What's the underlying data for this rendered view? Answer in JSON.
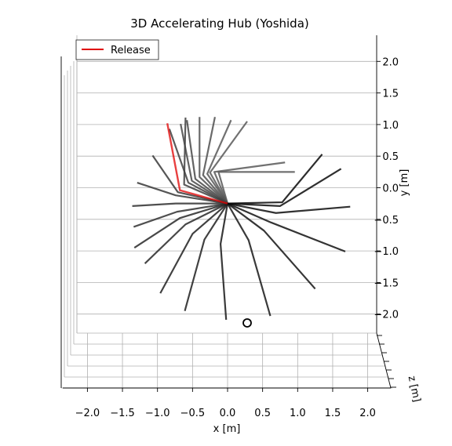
{
  "chart_data": {
    "type": "line",
    "title": "3D Accelerating Hub (Yoshida)",
    "xlabel": "x [m]",
    "ylabel": "y [m]",
    "zlabel": "z [m]",
    "xlim": [
      -2.3,
      2.3
    ],
    "ylim": [
      -2.3,
      2.3
    ],
    "x_ticks": [
      "−2.0",
      "−1.5",
      "−1.0",
      "−0.5",
      "0.0",
      "0.5",
      "1.0",
      "1.5",
      "2.0"
    ],
    "y_ticks": [
      "2.0",
      "1.5",
      "1.0",
      "0.5",
      "0.0",
      "−0.5",
      "−1.0",
      "−1.5",
      "−2.0"
    ],
    "grid": true,
    "legend": {
      "entries": [
        {
          "label": "Release",
          "color": "#e00000"
        }
      ],
      "position": "top-left"
    },
    "hub": {
      "x": 0.0,
      "y": -0.25
    },
    "release_frame": {
      "elbow": [
        -0.68,
        -0.04
      ],
      "tip": [
        -0.86,
        1.02
      ]
    },
    "end_marker": {
      "x": 0.28,
      "y": -2.14
    },
    "frames": [
      {
        "elbow": [
          -0.13,
          0.25
        ],
        "tip": [
          0.96,
          0.25
        ],
        "shade": 0.55
      },
      {
        "elbow": [
          -0.19,
          0.25
        ],
        "tip": [
          0.82,
          0.4
        ],
        "shade": 0.55
      },
      {
        "elbow": [
          -0.25,
          0.24
        ],
        "tip": [
          0.28,
          1.05
        ],
        "shade": 0.55
      },
      {
        "elbow": [
          -0.29,
          0.22
        ],
        "tip": [
          0.05,
          1.07
        ],
        "shade": 0.55
      },
      {
        "elbow": [
          -0.35,
          0.2
        ],
        "tip": [
          -0.18,
          1.12
        ],
        "shade": 0.5
      },
      {
        "elbow": [
          -0.4,
          0.17
        ],
        "tip": [
          -0.4,
          1.12
        ],
        "shade": 0.5
      },
      {
        "elbow": [
          -0.46,
          0.14
        ],
        "tip": [
          -0.58,
          1.07
        ],
        "shade": 0.45
      },
      {
        "elbow": [
          -0.51,
          0.11
        ],
        "tip": [
          -0.67,
          1.01
        ],
        "shade": 0.45
      },
      {
        "elbow": [
          -0.56,
          0.08
        ],
        "tip": [
          -0.83,
          0.93
        ],
        "shade": 0.4
      },
      {
        "elbow": [
          -0.62,
          0.05
        ],
        "tip": [
          -0.6,
          1.11
        ],
        "shade": 0.4
      },
      {
        "elbow": [
          -0.71,
          -0.07
        ],
        "tip": [
          -1.07,
          0.51
        ],
        "shade": 0.35
      },
      {
        "elbow": [
          -0.74,
          -0.12
        ],
        "tip": [
          -1.29,
          0.08
        ],
        "shade": 0.35
      },
      {
        "elbow": [
          -0.74,
          -0.25
        ],
        "tip": [
          -1.36,
          -0.29
        ],
        "shade": 0.3
      },
      {
        "elbow": [
          -0.72,
          -0.38
        ],
        "tip": [
          -1.34,
          -0.62
        ],
        "shade": 0.3
      },
      {
        "elbow": [
          -0.68,
          -0.48
        ],
        "tip": [
          -1.33,
          -0.95
        ],
        "shade": 0.25
      },
      {
        "elbow": [
          -0.6,
          -0.58
        ],
        "tip": [
          -1.18,
          -1.2
        ],
        "shade": 0.25
      },
      {
        "elbow": [
          -0.5,
          -0.73
        ],
        "tip": [
          -0.96,
          -1.67
        ],
        "shade": 0.2
      },
      {
        "elbow": [
          -0.33,
          -0.82
        ],
        "tip": [
          -0.61,
          -1.95
        ],
        "shade": 0.2
      },
      {
        "elbow": [
          -0.1,
          -0.89
        ],
        "tip": [
          -0.02,
          -2.09
        ],
        "shade": 0.15
      },
      {
        "elbow": [
          0.3,
          -0.83
        ],
        "tip": [
          0.61,
          -2.03
        ],
        "shade": 0.15
      },
      {
        "elbow": [
          0.52,
          -0.68
        ],
        "tip": [
          1.25,
          -1.6
        ],
        "shade": 0.12
      },
      {
        "elbow": [
          0.62,
          -0.55
        ],
        "tip": [
          1.68,
          -1.01
        ],
        "shade": 0.1
      },
      {
        "elbow": [
          0.69,
          -0.4
        ],
        "tip": [
          1.75,
          -0.3
        ],
        "shade": 0.08
      },
      {
        "elbow": [
          0.75,
          -0.29
        ],
        "tip": [
          1.62,
          0.3
        ],
        "shade": 0.06
      },
      {
        "elbow": [
          0.78,
          -0.23
        ],
        "tip": [
          1.35,
          0.53
        ],
        "shade": 0.05
      }
    ]
  }
}
